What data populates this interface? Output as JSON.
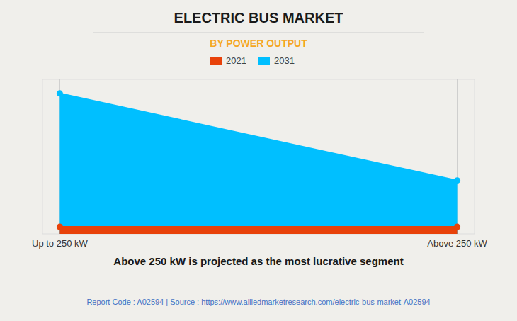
{
  "chart_data": {
    "type": "area",
    "title": "ELECTRIC BUS MARKET",
    "subtitle": "BY POWER OUTPUT",
    "categories": [
      "Up to 250 kW",
      "Above 250 kW"
    ],
    "series": [
      {
        "name": "2021",
        "color": "#E8420A",
        "values": [
          5,
          5
        ],
        "marker": "circle"
      },
      {
        "name": "2031",
        "color": "#00BFFF",
        "values": [
          100,
          38
        ],
        "marker": "circle"
      }
    ],
    "ylim": [
      0,
      110
    ],
    "grid": false,
    "legend": "top",
    "tick_labels": "x",
    "annotations": [
      "Above 250 kW is projected as the most lucrative segment",
      "Report Code : A02594  |  Source : https://www.alliedmarketresearch.com/electric-bus-market-A02594"
    ]
  }
}
